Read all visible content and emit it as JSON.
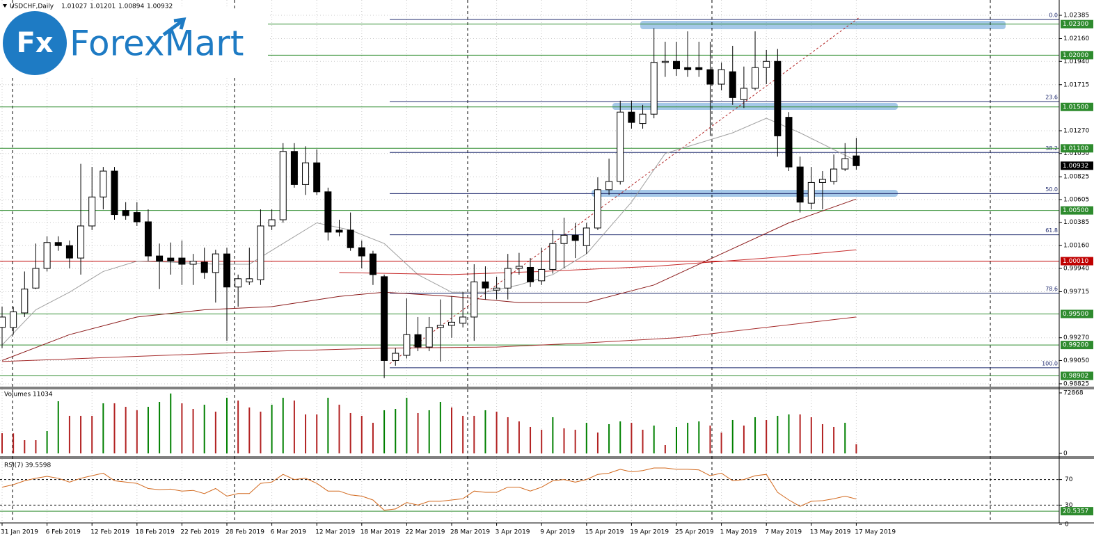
{
  "logo": {
    "mark": "Fx",
    "brand": "ForexMart"
  },
  "chart_data": [
    {
      "type": "candlestick",
      "title": "USDCHF,Daily",
      "categories": [
        "31 Jan 2019",
        null,
        null,
        null,
        "6 Feb 2019",
        null,
        null,
        null,
        "12 Feb 2019",
        null,
        null,
        null,
        "18 Feb 2019",
        null,
        null,
        null,
        "22 Feb 2019",
        null,
        null,
        null,
        "28 Feb 2019",
        null,
        null,
        null,
        "6 Mar 2019",
        null,
        null,
        null,
        "12 Mar 2019",
        null,
        null,
        null,
        "18 Mar 2019",
        null,
        null,
        null,
        "22 Mar 2019",
        null,
        null,
        null,
        "28 Mar 2019",
        null,
        null,
        null,
        "3 Apr 2019",
        null,
        null,
        null,
        "9 Apr 2019",
        null,
        null,
        null,
        "15 Apr 2019",
        null,
        null,
        null,
        "19 Apr 2019",
        null,
        null,
        null,
        "25 Apr 2019",
        null,
        null,
        null,
        "1 May 2019",
        null,
        null,
        null,
        "7 May 2019",
        null,
        null,
        null,
        "13 May 2019",
        null,
        null,
        null,
        "17 May 2019"
      ],
      "open": [
        0.9937,
        0.9937,
        0.9951,
        0.9975,
        0.9994,
        1.0019,
        1.0016,
        1.0004,
        1.0035,
        1.0063,
        1.0088,
        1.005,
        1.0048,
        1.0039,
        1.0006,
        1.0004,
        1.0004,
        0.9998,
        1.0,
        0.999,
        1.0008,
        0.9976,
        0.9981,
        0.9983,
        1.0035,
        1.0041,
        1.0107,
        1.0075,
        1.0096,
        1.0068,
        1.0031,
        1.0031,
        1.0014,
        1.0008,
        0.9986,
        0.9905,
        0.991,
        0.993,
        0.9918,
        0.9937,
        0.9939,
        0.9941,
        0.9947,
        0.9981,
        0.9973,
        0.9975,
        0.9994,
        0.9995,
        0.9982,
        0.9993,
        1.0018,
        1.0026,
        1.0016,
        1.0033,
        1.007,
        1.0078,
        1.0145,
        1.0134,
        1.0143,
        1.0193,
        1.0194,
        1.0188,
        1.0188,
        1.0186,
        1.0172,
        1.0184,
        1.0157,
        1.0168,
        1.0188,
        1.0194,
        1.014,
        1.0092,
        1.0057,
        1.0077,
        1.0078,
        1.009,
        1.01027
      ],
      "high": [
        0.9957,
        0.9957,
        0.9991,
        1.0018,
        1.0025,
        1.0025,
        1.0021,
        1.0095,
        1.0092,
        1.0092,
        1.0092,
        1.0058,
        1.0058,
        1.0051,
        1.0018,
        1.0019,
        1.0021,
        1.0008,
        1.0014,
        1.0012,
        1.0014,
        0.9988,
        1.0014,
        1.0051,
        1.0051,
        1.0115,
        1.0115,
        1.0112,
        1.0109,
        1.0072,
        1.0041,
        1.0048,
        1.0021,
        1.0011,
        0.9988,
        0.9917,
        0.9965,
        0.9947,
        0.9947,
        0.9964,
        0.9967,
        0.9971,
        0.9998,
        0.9996,
        0.9986,
        1.0008,
        1.0009,
        1.0004,
        1.0014,
        1.0031,
        1.0043,
        1.0038,
        1.0038,
        1.0082,
        1.01,
        1.0156,
        1.0156,
        1.0152,
        1.0226,
        1.0213,
        1.0213,
        1.0223,
        1.0213,
        1.0213,
        1.0193,
        1.0209,
        1.0189,
        1.0223,
        1.0205,
        1.0206,
        1.0145,
        1.0102,
        1.0092,
        1.0088,
        1.0104,
        1.0115,
        1.01201
      ],
      "low": [
        0.9917,
        0.993,
        0.9947,
        0.9974,
        0.9991,
        1.0011,
        0.9994,
        0.9988,
        1.0031,
        1.0051,
        1.0041,
        1.0041,
        1.0035,
        1.0001,
        0.9974,
        0.9988,
        0.9978,
        0.9978,
        0.9984,
        0.9961,
        0.9924,
        0.9957,
        0.9978,
        0.9978,
        1.0031,
        1.0038,
        1.0072,
        1.0065,
        1.0065,
        1.0021,
        1.0025,
        1.0011,
        0.9994,
        0.9978,
        0.9888,
        0.99,
        0.9907,
        0.9914,
        0.9914,
        0.9904,
        0.9927,
        0.9937,
        0.9924,
        0.9964,
        0.9964,
        0.9964,
        0.9988,
        0.9976,
        0.9978,
        0.9989,
        0.9994,
        1.0004,
        1.0008,
        1.0031,
        1.0065,
        1.0075,
        1.0129,
        1.0129,
        1.0139,
        1.0179,
        1.018,
        1.0179,
        1.0179,
        1.0122,
        1.0166,
        1.0152,
        1.0149,
        1.0166,
        1.0172,
        1.0102,
        1.0088,
        1.0048,
        1.0051,
        1.0051,
        1.0075,
        1.0088,
        1.00894
      ],
      "close": [
        0.9947,
        0.9952,
        0.9974,
        0.9994,
        1.0019,
        1.0016,
        1.0004,
        1.0035,
        1.0063,
        1.0088,
        1.0046,
        1.0045,
        1.0039,
        1.0006,
        1.0001,
        1.0001,
        0.9998,
        1.0001,
        0.999,
        1.0008,
        0.9976,
        0.9984,
        0.9984,
        1.0035,
        1.0041,
        1.0107,
        1.0075,
        1.0096,
        1.0068,
        1.0029,
        1.0029,
        1.0014,
        1.0006,
        0.9988,
        0.9905,
        0.9912,
        0.993,
        0.9918,
        0.9937,
        0.9939,
        0.9942,
        0.9947,
        0.9981,
        0.9975,
        0.9975,
        0.9994,
        0.9996,
        0.9981,
        0.9993,
        1.0018,
        1.0026,
        1.0021,
        1.0033,
        1.007,
        1.0078,
        1.0145,
        1.0135,
        1.0143,
        1.0193,
        1.0194,
        1.0187,
        1.0186,
        1.0186,
        1.0172,
        1.0186,
        1.0159,
        1.0168,
        1.0188,
        1.0194,
        1.0122,
        1.0092,
        1.0058,
        1.0077,
        1.008,
        1.009,
        1.01,
        1.00932
      ],
      "up_color": "#ffffff",
      "down_color": "#000000",
      "ylim": [
        0.98791,
        1.02533
      ],
      "yticks": [
        1.02385,
        {
          "value": 1.0216,
          "label": "1.02160"
        },
        {
          "value": 1.0194,
          "label": "1.01940"
        },
        1.01715,
        {
          "value": 1.0127,
          "label": "1.01270"
        },
        {
          "value": 1.0105,
          "label": "1.01050"
        },
        1.00825,
        1.00605,
        1.00385,
        {
          "value": 1.0016,
          "label": "1.00160"
        },
        {
          "value": 0.9994,
          "label": "0.99940"
        },
        0.99715,
        {
          "value": 0.9927,
          "label": "0.99270"
        },
        {
          "value": 0.9905,
          "label": "0.99050"
        },
        0.98825
      ],
      "grid": true,
      "levels": [
        {
          "value": 1.023,
          "label": "1.02300",
          "color": "#2e8b2e"
        },
        {
          "value": 1.02,
          "label": "1.02000",
          "color": "#2e8b2e"
        },
        {
          "value": 1.015,
          "label": "1.01500",
          "color": "#2e8b2e"
        },
        {
          "value": 1.011,
          "label": "1.01100",
          "color": "#2e8b2e"
        },
        {
          "value": 1.005,
          "label": "1.00500",
          "color": "#2e8b2e"
        },
        {
          "value": 1.0001,
          "label": "1.00010",
          "color": "#c00000"
        },
        {
          "value": 0.995,
          "label": "0.99500",
          "color": "#2e8b2e"
        },
        {
          "value": 0.992,
          "label": "0.99200",
          "color": "#2e8b2e"
        },
        {
          "value": 0.98902,
          "label": "0.98902",
          "color": "#2e8b2e"
        }
      ],
      "fibo": [
        {
          "value": 1.02345,
          "label": "0.0"
        },
        {
          "value": 1.01551,
          "label": "23.6"
        },
        {
          "value": 1.0106,
          "label": "38.2"
        },
        {
          "value": 1.00663,
          "label": "50.0"
        },
        {
          "value": 1.00265,
          "label": "61.8"
        },
        {
          "value": 0.997,
          "label": "78.6"
        },
        {
          "value": 0.9898,
          "label": "100.0"
        }
      ],
      "fibo_color": "#1f2a6e",
      "moving_averages": [
        {
          "color": "#a0a0a0",
          "x": [
            0,
            3,
            6,
            9,
            12,
            15,
            19,
            22,
            25,
            28,
            31,
            34,
            37,
            40,
            43,
            46,
            49,
            52,
            56,
            59,
            62,
            65,
            68,
            71,
            76
          ],
          "values": [
            0.992,
            0.9954,
            0.9971,
            0.9991,
            1.0001,
            1.0,
            0.9998,
            0.9998,
            1.0018,
            1.0038,
            1.0031,
            1.0018,
            0.9988,
            0.9971,
            0.9971,
            0.9978,
            0.9988,
            1.0008,
            1.0058,
            1.0105,
            1.0115,
            1.0125,
            1.0139,
            1.0125,
            1.0098
          ]
        },
        {
          "color": "#8b1a1a",
          "x": [
            0,
            6,
            12,
            18,
            24,
            30,
            34,
            40,
            46,
            52,
            58,
            64,
            70,
            76
          ],
          "values": [
            0.9905,
            0.993,
            0.9947,
            0.9954,
            0.9957,
            0.9967,
            0.9971,
            0.9967,
            0.9961,
            0.9961,
            0.9978,
            1.0008,
            1.0038,
            1.0061
          ]
        },
        {
          "color": "#a52a2a",
          "x": [
            0,
            12,
            24,
            34,
            44,
            52,
            60,
            68,
            76
          ],
          "values": [
            0.9904,
            0.9909,
            0.9914,
            0.9917,
            0.9918,
            0.9922,
            0.9927,
            0.9937,
            0.9947
          ]
        },
        {
          "color": "#c62828",
          "x": [
            30,
            40,
            48,
            58,
            68,
            76
          ],
          "values": [
            0.999,
            0.9988,
            0.9991,
            0.9996,
            1.0004,
            1.0012
          ]
        }
      ]
    },
    {
      "type": "bar",
      "title": "Volumes",
      "values": [
        24302,
        24100,
        15922,
        15922,
        26816,
        62850,
        45252,
        45252,
        45252,
        60336,
        60336,
        56146,
        51956,
        56146,
        62012,
        72100,
        60336,
        53632,
        58660,
        50280,
        67040,
        63688,
        55308,
        50280,
        58660,
        67040,
        63688,
        46928,
        46928,
        67040,
        58660,
        48604,
        45252,
        36872,
        51956,
        53632,
        67040,
        48604,
        51956,
        62012,
        55308,
        45252,
        45252,
        51956,
        50280,
        43576,
        38548,
        31844,
        28492,
        43576,
        30168,
        28492,
        36872,
        25140,
        35196,
        38548,
        36872,
        28492,
        33520,
        10056,
        31844,
        36872,
        38548,
        33520,
        25140,
        40224,
        33520,
        43576,
        40224,
        45252,
        46928,
        46928,
        43576,
        35196,
        31844,
        36872,
        11034
      ],
      "up_color": "#008000",
      "down_color": "#b22222",
      "ylim": [
        0,
        72868
      ],
      "yticks": [
        72868,
        0
      ]
    },
    {
      "type": "line",
      "title": "RSI(7)",
      "values": [
        58,
        62,
        68,
        72,
        75,
        72,
        66,
        72,
        76,
        80,
        68,
        66,
        64,
        56,
        54,
        55,
        52,
        53,
        48,
        56,
        44,
        48,
        48,
        64,
        66,
        78,
        70,
        72,
        64,
        52,
        52,
        46,
        44,
        38,
        22,
        24,
        34,
        30,
        36,
        36,
        38,
        40,
        52,
        50,
        50,
        58,
        58,
        52,
        58,
        68,
        70,
        66,
        70,
        78,
        80,
        86,
        82,
        84,
        88,
        88,
        86,
        86,
        85,
        76,
        80,
        68,
        70,
        76,
        78,
        50,
        38,
        28,
        36,
        37,
        40,
        44,
        39.5598
      ],
      "color": "#d2691e",
      "ylim": [
        0,
        100
      ],
      "yticks": [
        70,
        30,
        0
      ],
      "levels": [
        {
          "value": 20.5357,
          "color": "#2e8b2e"
        }
      ]
    }
  ]
}
